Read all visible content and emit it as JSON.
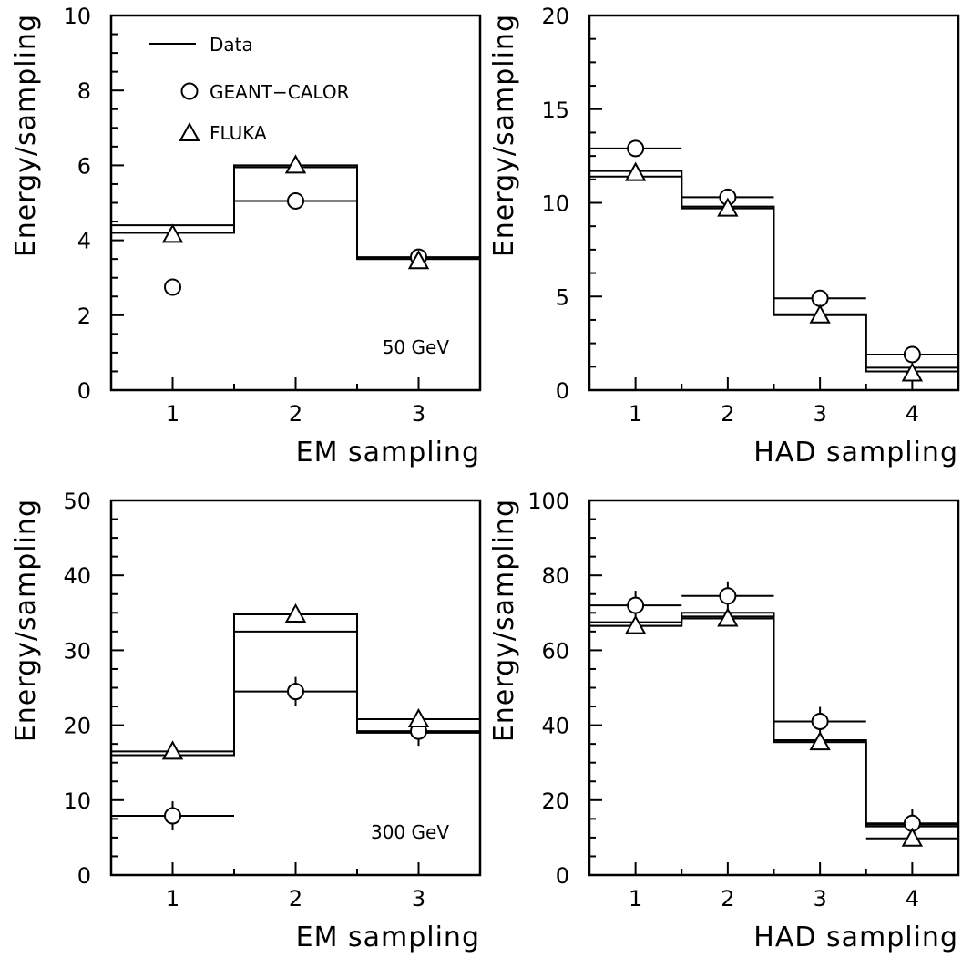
{
  "chart_data": [
    {
      "type": "step",
      "xlabel": "EM sampling",
      "ylabel": "Energy/sampling",
      "xlim": [
        0.5,
        3.5
      ],
      "ylim": [
        0,
        10
      ],
      "xticks": [
        "1",
        "2",
        "3"
      ],
      "yticks": [
        "0",
        "2",
        "4",
        "6",
        "8",
        "10"
      ],
      "annotation": "50  GeV",
      "legend": [
        {
          "label": "Data",
          "marker": "line"
        },
        {
          "label": "GEANT−CALOR",
          "marker": "circle"
        },
        {
          "label": "FLUKA",
          "marker": "triangle"
        }
      ],
      "data_upper": [
        4.4,
        6.0,
        3.55
      ],
      "data_lower": [
        4.2,
        5.95,
        3.5
      ],
      "geant_calor": {
        "x": [
          1,
          2,
          3
        ],
        "y": [
          2.75,
          5.05,
          3.55
        ],
        "bars": [
          4.2,
          5.05,
          3.5
        ]
      },
      "fluka": {
        "x": [
          1,
          2,
          3
        ],
        "y": [
          4.15,
          6.0,
          3.45
        ]
      }
    },
    {
      "type": "step",
      "xlabel": "HAD sampling",
      "ylabel": "Energy/sampling",
      "xlim": [
        0.5,
        4.5
      ],
      "ylim": [
        0,
        20
      ],
      "xticks": [
        "1",
        "2",
        "3",
        "4"
      ],
      "yticks": [
        "0",
        "5",
        "10",
        "15",
        "20"
      ],
      "data_upper": [
        11.7,
        9.8,
        4.05,
        1.2
      ],
      "data_lower": [
        11.4,
        9.7,
        4.0,
        1.0
      ],
      "geant_calor": {
        "x": [
          1,
          2,
          3,
          4
        ],
        "y": [
          12.9,
          10.3,
          4.9,
          1.9
        ],
        "bars": [
          12.9,
          10.3,
          4.9,
          1.9
        ]
      },
      "fluka": {
        "x": [
          1,
          2,
          3,
          4
        ],
        "y": [
          11.6,
          9.7,
          4.0,
          0.9
        ]
      }
    },
    {
      "type": "step",
      "xlabel": "EM sampling",
      "ylabel": "Energy/sampling",
      "xlim": [
        0.5,
        3.5
      ],
      "ylim": [
        0,
        50
      ],
      "xticks": [
        "1",
        "2",
        "3"
      ],
      "yticks": [
        "0",
        "10",
        "20",
        "30",
        "40",
        "50"
      ],
      "annotation": "300  GeV",
      "data_upper": [
        16.5,
        34.8,
        20.8
      ],
      "data_lower": [
        16.0,
        32.5,
        19.0
      ],
      "geant_calor": {
        "x": [
          1,
          2,
          3
        ],
        "y": [
          7.9,
          24.5,
          19.2
        ],
        "bars": [
          7.9,
          24.5,
          19.2
        ]
      },
      "fluka": {
        "x": [
          1,
          2,
          3
        ],
        "y": [
          16.5,
          34.8,
          20.8
        ]
      }
    },
    {
      "type": "step",
      "xlabel": "HAD sampling",
      "ylabel": "Energy/sampling",
      "xlim": [
        0.5,
        4.5
      ],
      "ylim": [
        0,
        100
      ],
      "xticks": [
        "1",
        "2",
        "3",
        "4"
      ],
      "yticks": [
        "0",
        "20",
        "40",
        "60",
        "80",
        "100"
      ],
      "data_upper": [
        67.5,
        70.0,
        36.0,
        13.5
      ],
      "data_lower": [
        66.5,
        69.0,
        35.5,
        13.0
      ],
      "geant_calor": {
        "x": [
          1,
          2,
          3,
          4
        ],
        "y": [
          72.0,
          74.5,
          41.0,
          13.8
        ],
        "bars": [
          72.0,
          74.5,
          41.0,
          13.8
        ]
      },
      "fluka": {
        "x": [
          1,
          2,
          3,
          4
        ],
        "y": [
          66.5,
          68.5,
          35.5,
          9.8
        ],
        "bars": [
          66.5,
          68.5,
          35.5,
          9.8
        ]
      }
    }
  ]
}
